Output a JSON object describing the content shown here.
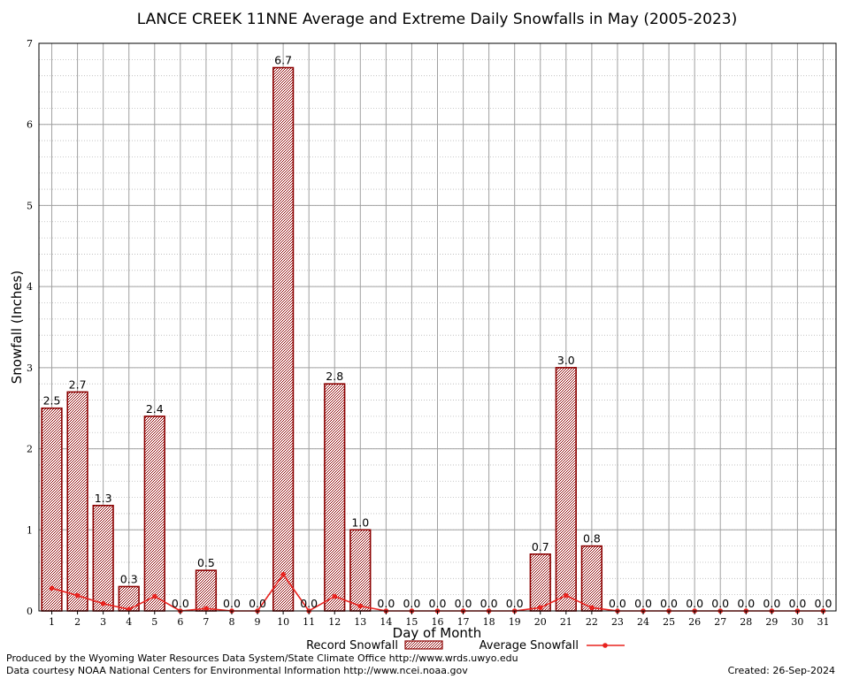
{
  "chart_data": {
    "type": "bar",
    "title": "LANCE CREEK 11NNE Average and Extreme Daily Snowfalls in May (2005-2023)",
    "xlabel": "Day of Month",
    "ylabel": "Snowfall (Inches)",
    "ylim": [
      0,
      7
    ],
    "yticks": [
      "0",
      "1",
      "2",
      "3",
      "4",
      "5",
      "6",
      "7"
    ],
    "grid": true,
    "categories": [
      "1",
      "2",
      "3",
      "4",
      "5",
      "6",
      "7",
      "8",
      "9",
      "10",
      "11",
      "12",
      "13",
      "14",
      "15",
      "16",
      "17",
      "18",
      "19",
      "20",
      "21",
      "22",
      "23",
      "24",
      "25",
      "26",
      "27",
      "28",
      "29",
      "30",
      "31"
    ],
    "series": [
      {
        "name": "Record Snowfall",
        "type": "bar",
        "color": "#8b0000",
        "values": [
          2.5,
          2.7,
          1.3,
          0.3,
          2.4,
          0.0,
          0.5,
          0.0,
          0.0,
          6.7,
          0.0,
          2.8,
          1.0,
          0.0,
          0.0,
          0.0,
          0.0,
          0.0,
          0.0,
          0.7,
          3.0,
          0.8,
          0.0,
          0.0,
          0.0,
          0.0,
          0.0,
          0.0,
          0.0,
          0.0,
          0.0
        ],
        "labels": [
          "2.5",
          "2.7",
          "1.3",
          "0.3",
          "2.4",
          "0.0",
          "0.5",
          "0.0",
          "0.0",
          "6.7",
          "0.0",
          "2.8",
          "1.0",
          "0.0",
          "0.0",
          "0.0",
          "0.0",
          "0.0",
          "0.0",
          "0.7",
          "3.0",
          "0.8",
          "0.0",
          "0.0",
          "0.0",
          "0.0",
          "0.0",
          "0.0",
          "0.0",
          "0.0",
          "0.0"
        ]
      },
      {
        "name": "Average Snowfall",
        "type": "line",
        "color": "#e8231f",
        "values": [
          0.28,
          0.19,
          0.09,
          0.02,
          0.18,
          0.0,
          0.03,
          0.0,
          0.0,
          0.45,
          0.0,
          0.18,
          0.06,
          0.0,
          0.0,
          0.0,
          0.0,
          0.0,
          0.0,
          0.04,
          0.19,
          0.04,
          0.0,
          0.0,
          0.0,
          0.0,
          0.0,
          0.0,
          0.0,
          0.0,
          0.0
        ]
      }
    ],
    "legend_position": "bottom"
  },
  "footer": {
    "line1": "Produced by the Wyoming Water Resources Data System/State Climate Office http://www.wrds.uwyo.edu",
    "line2": "Data courtesy NOAA National Centers for Environmental Information http://www.ncei.noaa.gov",
    "created": "Created: 26-Sep-2024"
  }
}
